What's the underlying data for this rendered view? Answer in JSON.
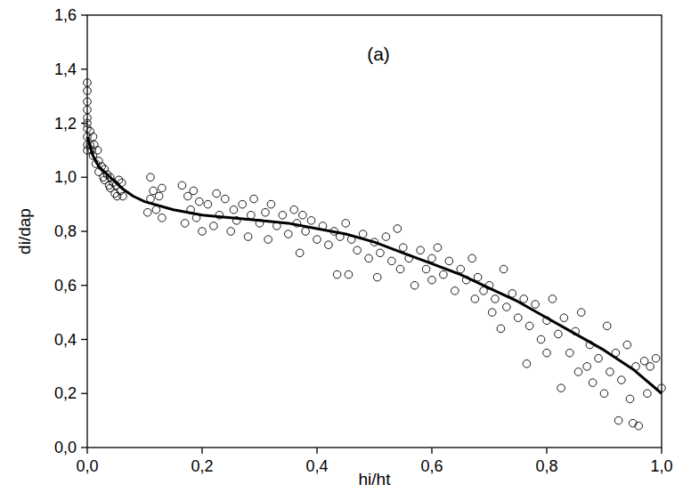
{
  "chart_data": {
    "type": "scatter",
    "annotation": "(a)",
    "x_label": "hi/ht",
    "y_label": "di/dap",
    "xlim": [
      0,
      1
    ],
    "ylim": [
      0,
      1.6
    ],
    "xticks": [
      {
        "value": 0,
        "label": "0,0"
      },
      {
        "value": 0.2,
        "label": "0,2"
      },
      {
        "value": 0.4,
        "label": "0,4"
      },
      {
        "value": 0.6,
        "label": "0,6"
      },
      {
        "value": 0.8,
        "label": "0,8"
      },
      {
        "value": 1,
        "label": "1,0"
      }
    ],
    "yticks": [
      {
        "value": 0,
        "label": "0,0"
      },
      {
        "value": 0.2,
        "label": "0,2"
      },
      {
        "value": 0.4,
        "label": "0,4"
      },
      {
        "value": 0.6,
        "label": "0,6"
      },
      {
        "value": 0.8,
        "label": "0,8"
      },
      {
        "value": 1,
        "label": "1,0"
      },
      {
        "value": 1.2,
        "label": "1,2"
      },
      {
        "value": 1.4,
        "label": "1,4"
      },
      {
        "value": 1.6,
        "label": "1,6"
      }
    ],
    "grid": false,
    "series": [
      {
        "type": "scatter",
        "marker": "circle",
        "color": "#000000",
        "x": [
          0,
          0,
          0,
          0,
          0,
          0,
          0,
          0,
          0,
          0,
          0.005,
          0.005,
          0.008,
          0.01,
          0.01,
          0.012,
          0.015,
          0.018,
          0.02,
          0.02,
          0.025,
          0.028,
          0.03,
          0.03,
          0.035,
          0.038,
          0.04,
          0.04,
          0.045,
          0.048,
          0.05,
          0.052,
          0.055,
          0.058,
          0.06,
          0.062,
          0.105,
          0.11,
          0.11,
          0.115,
          0.12,
          0.125,
          0.13,
          0.13,
          0.165,
          0.17,
          0.175,
          0.18,
          0.185,
          0.19,
          0.195,
          0.2,
          0.21,
          0.22,
          0.225,
          0.23,
          0.24,
          0.25,
          0.255,
          0.26,
          0.27,
          0.28,
          0.285,
          0.29,
          0.3,
          0.31,
          0.315,
          0.32,
          0.33,
          0.34,
          0.35,
          0.36,
          0.365,
          0.37,
          0.375,
          0.38,
          0.39,
          0.4,
          0.41,
          0.42,
          0.43,
          0.435,
          0.44,
          0.45,
          0.455,
          0.46,
          0.47,
          0.48,
          0.49,
          0.5,
          0.505,
          0.51,
          0.52,
          0.53,
          0.54,
          0.545,
          0.55,
          0.56,
          0.57,
          0.58,
          0.59,
          0.6,
          0.6,
          0.61,
          0.62,
          0.63,
          0.64,
          0.65,
          0.66,
          0.67,
          0.675,
          0.68,
          0.69,
          0.7,
          0.705,
          0.71,
          0.72,
          0.725,
          0.73,
          0.74,
          0.75,
          0.76,
          0.765,
          0.77,
          0.78,
          0.79,
          0.8,
          0.8,
          0.81,
          0.82,
          0.825,
          0.83,
          0.84,
          0.85,
          0.855,
          0.86,
          0.87,
          0.875,
          0.88,
          0.89,
          0.9,
          0.905,
          0.91,
          0.92,
          0.925,
          0.93,
          0.94,
          0.945,
          0.95,
          0.955,
          0.96,
          0.97,
          0.975,
          0.98,
          0.99,
          1.0
        ],
        "values": [
          1.35,
          1.32,
          1.28,
          1.25,
          1.22,
          1.2,
          1.18,
          1.15,
          1.12,
          1.1,
          1.17,
          1.12,
          1.1,
          1.15,
          1.08,
          1.12,
          1.05,
          1.1,
          1.06,
          1.02,
          1.04,
          1.0,
          1.03,
          0.99,
          1.01,
          0.97,
          1.0,
          0.96,
          0.98,
          0.94,
          0.97,
          0.93,
          0.99,
          0.95,
          0.98,
          0.93,
          0.87,
          1.0,
          0.92,
          0.95,
          0.88,
          0.93,
          0.85,
          0.96,
          0.97,
          0.83,
          0.93,
          0.88,
          0.95,
          0.85,
          0.91,
          0.8,
          0.9,
          0.82,
          0.94,
          0.86,
          0.92,
          0.8,
          0.88,
          0.84,
          0.9,
          0.78,
          0.86,
          0.92,
          0.83,
          0.87,
          0.77,
          0.9,
          0.82,
          0.86,
          0.79,
          0.88,
          0.83,
          0.72,
          0.86,
          0.8,
          0.84,
          0.77,
          0.82,
          0.75,
          0.8,
          0.64,
          0.78,
          0.83,
          0.64,
          0.77,
          0.73,
          0.79,
          0.7,
          0.76,
          0.63,
          0.72,
          0.78,
          0.69,
          0.81,
          0.66,
          0.74,
          0.7,
          0.6,
          0.73,
          0.66,
          0.7,
          0.62,
          0.74,
          0.64,
          0.69,
          0.58,
          0.66,
          0.62,
          0.7,
          0.55,
          0.63,
          0.58,
          0.6,
          0.5,
          0.55,
          0.44,
          0.66,
          0.52,
          0.57,
          0.48,
          0.55,
          0.31,
          0.45,
          0.53,
          0.4,
          0.47,
          0.35,
          0.55,
          0.42,
          0.22,
          0.48,
          0.35,
          0.43,
          0.28,
          0.5,
          0.3,
          0.38,
          0.24,
          0.33,
          0.2,
          0.45,
          0.28,
          0.35,
          0.1,
          0.25,
          0.38,
          0.18,
          0.09,
          0.3,
          0.08,
          0.32,
          0.2,
          0.3,
          0.33,
          0.22
        ]
      },
      {
        "type": "line",
        "line_style": "solid",
        "color": "#000000",
        "x": [
          0,
          0.01,
          0.02,
          0.04,
          0.06,
          0.08,
          0.1,
          0.15,
          0.2,
          0.25,
          0.3,
          0.35,
          0.4,
          0.45,
          0.5,
          0.55,
          0.6,
          0.65,
          0.7,
          0.75,
          0.8,
          0.85,
          0.9,
          0.95,
          1.0
        ],
        "values": [
          1.15,
          1.08,
          1.04,
          1.0,
          0.96,
          0.93,
          0.91,
          0.88,
          0.86,
          0.85,
          0.84,
          0.83,
          0.81,
          0.79,
          0.76,
          0.72,
          0.68,
          0.64,
          0.59,
          0.54,
          0.48,
          0.42,
          0.36,
          0.29,
          0.2
        ]
      }
    ]
  }
}
